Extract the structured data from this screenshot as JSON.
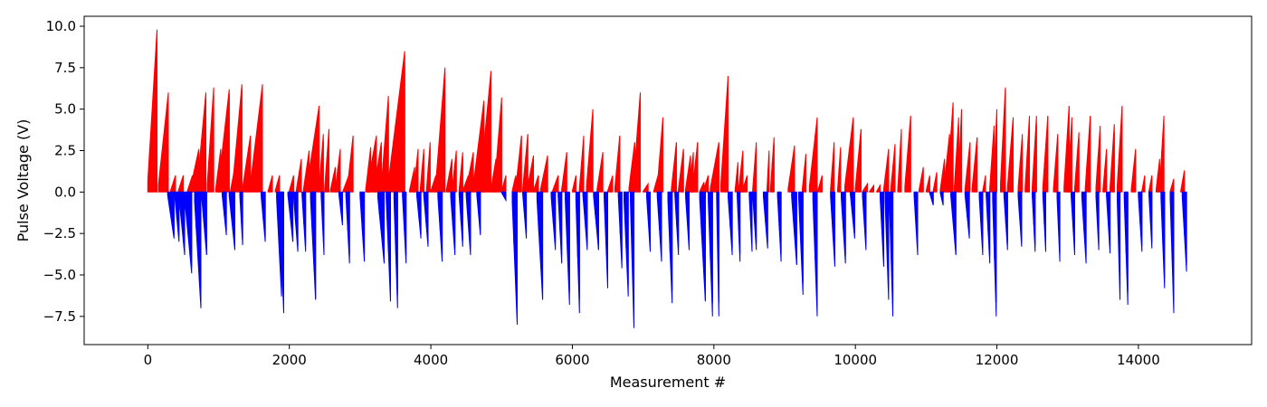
{
  "chart_data": {
    "type": "bar",
    "title": "",
    "xlabel": "Measurement #",
    "ylabel": "Pulse Voltage (V)",
    "xlim": [
      -900,
      15600
    ],
    "ylim": [
      -9.2,
      10.6
    ],
    "x_ticks": [
      0,
      2000,
      4000,
      6000,
      8000,
      10000,
      12000,
      14000
    ],
    "x_tick_labels": [
      "0",
      "2000",
      "4000",
      "6000",
      "8000",
      "10000",
      "12000",
      "14000"
    ],
    "y_ticks": [
      -7.5,
      -5.0,
      -2.5,
      0.0,
      2.5,
      5.0,
      7.5,
      10.0
    ],
    "y_tick_labels": [
      "−7.5",
      "−5.0",
      "−2.5",
      "0.0",
      "2.5",
      "5.0",
      "7.5",
      "10.0"
    ],
    "grid": false,
    "legend": "none",
    "series": [
      {
        "color": "#ff0000",
        "description": "positive pulses, ramps up to peak then resets",
        "ramps": [
          [
            0,
            130,
            9.8
          ],
          [
            150,
            290,
            6.0
          ],
          [
            320,
            390,
            1.0
          ],
          [
            430,
            500,
            1.0
          ],
          [
            560,
            630,
            1.0
          ],
          [
            600,
            720,
            2.6
          ],
          [
            700,
            820,
            6.0
          ],
          [
            840,
            930,
            6.3
          ],
          [
            960,
            1030,
            2.6
          ],
          [
            1000,
            1150,
            6.2
          ],
          [
            1170,
            1230,
            1.5
          ],
          [
            1200,
            1330,
            6.5
          ],
          [
            1340,
            1450,
            3.4
          ],
          [
            1450,
            1620,
            6.5
          ],
          [
            1700,
            1760,
            1.0
          ],
          [
            1800,
            1860,
            1.0
          ],
          [
            2000,
            2060,
            1.0
          ],
          [
            2100,
            2170,
            2.0
          ],
          [
            2200,
            2280,
            2.5
          ],
          [
            2250,
            2420,
            5.2
          ],
          [
            2420,
            2480,
            3.5
          ],
          [
            2500,
            2560,
            3.8
          ],
          [
            2580,
            2650,
            1.5
          ],
          [
            2650,
            2720,
            2.6
          ],
          [
            2760,
            2840,
            1.0
          ],
          [
            2820,
            2900,
            3.4
          ],
          [
            3080,
            3150,
            2.7
          ],
          [
            3100,
            3230,
            3.4
          ],
          [
            3200,
            3300,
            3.0
          ],
          [
            3300,
            3400,
            5.8
          ],
          [
            3400,
            3630,
            8.5
          ],
          [
            3700,
            3770,
            1.5
          ],
          [
            3760,
            3820,
            2.6
          ],
          [
            3850,
            3900,
            2.6
          ],
          [
            3940,
            3990,
            3.0
          ],
          [
            4000,
            4070,
            1.0
          ],
          [
            4070,
            4200,
            7.5
          ],
          [
            4220,
            4300,
            2.0
          ],
          [
            4300,
            4360,
            2.5
          ],
          [
            4400,
            4450,
            2.4
          ],
          [
            4450,
            4530,
            1.0
          ],
          [
            4500,
            4600,
            2.4
          ],
          [
            4600,
            4750,
            5.5
          ],
          [
            4700,
            4850,
            7.3
          ],
          [
            4850,
            4920,
            2.0
          ],
          [
            4900,
            5000,
            5.7
          ],
          [
            5000,
            5060,
            1.0
          ],
          [
            5150,
            5200,
            1.0
          ],
          [
            5200,
            5280,
            3.4
          ],
          [
            5300,
            5370,
            3.5
          ],
          [
            5360,
            5450,
            2.2
          ],
          [
            5450,
            5520,
            1.0
          ],
          [
            5550,
            5650,
            2.2
          ],
          [
            5720,
            5800,
            1.0
          ],
          [
            5850,
            5920,
            2.4
          ],
          [
            6000,
            6050,
            1.0
          ],
          [
            6100,
            6160,
            3.4
          ],
          [
            6200,
            6290,
            5.0
          ],
          [
            6350,
            6430,
            2.4
          ],
          [
            6500,
            6570,
            1.0
          ],
          [
            6600,
            6670,
            3.4
          ],
          [
            6800,
            6880,
            3.0
          ],
          [
            6860,
            6960,
            6.0
          ],
          [
            7000,
            7070,
            0.5
          ],
          [
            7150,
            7210,
            1.0
          ],
          [
            7200,
            7280,
            4.5
          ],
          [
            7400,
            7470,
            3.0
          ],
          [
            7500,
            7570,
            2.6
          ],
          [
            7600,
            7670,
            2.2
          ],
          [
            7650,
            7710,
            2.4
          ],
          [
            7700,
            7770,
            3.0
          ],
          [
            7800,
            7860,
            0.6
          ],
          [
            7850,
            7920,
            1.0
          ],
          [
            7950,
            8070,
            3.0
          ],
          [
            8100,
            8200,
            7.0
          ],
          [
            8300,
            8340,
            1.8
          ],
          [
            8350,
            8410,
            2.5
          ],
          [
            8400,
            8470,
            1.0
          ],
          [
            8550,
            8600,
            3.0
          ],
          [
            8750,
            8780,
            2.5
          ],
          [
            8800,
            8850,
            3.3
          ],
          [
            9050,
            9140,
            2.8
          ],
          [
            9250,
            9300,
            2.3
          ],
          [
            9350,
            9460,
            4.5
          ],
          [
            9470,
            9530,
            1.0
          ],
          [
            9650,
            9700,
            3.0
          ],
          [
            9750,
            9790,
            2.7
          ],
          [
            9850,
            9970,
            4.5
          ],
          [
            10000,
            10080,
            3.8
          ],
          [
            10100,
            10170,
            0.5
          ],
          [
            10200,
            10260,
            0.4
          ],
          [
            10300,
            10350,
            0.4
          ],
          [
            10400,
            10470,
            2.6
          ],
          [
            10500,
            10560,
            2.9
          ],
          [
            10600,
            10650,
            3.8
          ],
          [
            10700,
            10780,
            4.6
          ],
          [
            10900,
            10960,
            1.5
          ],
          [
            11000,
            11050,
            1.0
          ],
          [
            11100,
            11150,
            1.2
          ],
          [
            11200,
            11260,
            2.0
          ],
          [
            11250,
            11330,
            3.5
          ],
          [
            11300,
            11380,
            5.4
          ],
          [
            11400,
            11460,
            4.5
          ],
          [
            11450,
            11500,
            5.0
          ],
          [
            11550,
            11620,
            3.0
          ],
          [
            11650,
            11720,
            3.3
          ],
          [
            11800,
            11840,
            1.0
          ],
          [
            11900,
            11960,
            4.0
          ],
          [
            11950,
            12000,
            5.0
          ],
          [
            12050,
            12120,
            6.3
          ],
          [
            12150,
            12230,
            4.5
          ],
          [
            12300,
            12360,
            3.5
          ],
          [
            12400,
            12460,
            4.6
          ],
          [
            12500,
            12560,
            4.6
          ],
          [
            12650,
            12720,
            4.6
          ],
          [
            12800,
            12860,
            3.5
          ],
          [
            12950,
            13020,
            5.2
          ],
          [
            13000,
            13060,
            4.5
          ],
          [
            13100,
            13160,
            3.6
          ],
          [
            13250,
            13320,
            4.6
          ],
          [
            13400,
            13460,
            4.0
          ],
          [
            13500,
            13550,
            2.6
          ],
          [
            13600,
            13660,
            4.1
          ],
          [
            13700,
            13770,
            5.2
          ],
          [
            13900,
            13960,
            2.6
          ],
          [
            14050,
            14090,
            1.0
          ],
          [
            14150,
            14190,
            1.0
          ],
          [
            14250,
            14300,
            2.0
          ],
          [
            14300,
            14360,
            4.6
          ],
          [
            14450,
            14500,
            0.8
          ],
          [
            14600,
            14650,
            1.3
          ]
        ]
      },
      {
        "color": "#0000ff",
        "description": "negative pulses, ramps down to trough then resets",
        "ramps": [
          [
            280,
            370,
            -2.8
          ],
          [
            380,
            440,
            -3.0
          ],
          [
            440,
            520,
            -3.8
          ],
          [
            520,
            620,
            -4.9
          ],
          [
            660,
            750,
            -7.0
          ],
          [
            760,
            830,
            -3.8
          ],
          [
            1050,
            1110,
            -2.6
          ],
          [
            1150,
            1230,
            -3.5
          ],
          [
            1300,
            1340,
            -3.2
          ],
          [
            1600,
            1660,
            -3.0
          ],
          [
            1820,
            1890,
            -6.3
          ],
          [
            1860,
            1920,
            -7.3
          ],
          [
            1980,
            2050,
            -3.0
          ],
          [
            2060,
            2120,
            -3.6
          ],
          [
            2180,
            2230,
            -3.6
          ],
          [
            2300,
            2370,
            -6.5
          ],
          [
            2450,
            2490,
            -3.8
          ],
          [
            2700,
            2750,
            -2.0
          ],
          [
            2800,
            2850,
            -4.3
          ],
          [
            3000,
            3060,
            -4.2
          ],
          [
            3250,
            3340,
            -4.3
          ],
          [
            3370,
            3430,
            -6.6
          ],
          [
            3480,
            3530,
            -7.0
          ],
          [
            3600,
            3650,
            -4.3
          ],
          [
            3800,
            3860,
            -2.8
          ],
          [
            3900,
            3960,
            -3.3
          ],
          [
            4100,
            4160,
            -4.2
          ],
          [
            4280,
            4340,
            -3.8
          ],
          [
            4400,
            4450,
            -3.3
          ],
          [
            4500,
            4560,
            -3.8
          ],
          [
            4650,
            4700,
            -2.6
          ],
          [
            5000,
            5060,
            -0.5
          ],
          [
            5150,
            5220,
            -8.0
          ],
          [
            5300,
            5350,
            -2.8
          ],
          [
            5500,
            5580,
            -6.5
          ],
          [
            5700,
            5760,
            -3.5
          ],
          [
            5800,
            5850,
            -4.3
          ],
          [
            5900,
            5960,
            -6.8
          ],
          [
            6050,
            6100,
            -7.3
          ],
          [
            6150,
            6210,
            -3.5
          ],
          [
            6300,
            6370,
            -3.5
          ],
          [
            6450,
            6500,
            -5.8
          ],
          [
            6650,
            6700,
            -4.6
          ],
          [
            6730,
            6790,
            -6.3
          ],
          [
            6820,
            6870,
            -8.2
          ],
          [
            7050,
            7100,
            -3.6
          ],
          [
            7200,
            7260,
            -4.2
          ],
          [
            7350,
            7410,
            -6.7
          ],
          [
            7450,
            7500,
            -3.8
          ],
          [
            7600,
            7650,
            -3.5
          ],
          [
            7800,
            7880,
            -6.6
          ],
          [
            7920,
            7980,
            -7.5
          ],
          [
            8040,
            8070,
            -7.5
          ],
          [
            8200,
            8260,
            -3.8
          ],
          [
            8330,
            8370,
            -4.2
          ],
          [
            8500,
            8540,
            -3.6
          ],
          [
            8550,
            8600,
            -3.5
          ],
          [
            8700,
            8760,
            -3.4
          ],
          [
            8900,
            8950,
            -4.2
          ],
          [
            9100,
            9170,
            -4.4
          ],
          [
            9200,
            9260,
            -6.2
          ],
          [
            9400,
            9460,
            -7.5
          ],
          [
            9650,
            9710,
            -4.5
          ],
          [
            9800,
            9860,
            -4.3
          ],
          [
            9930,
            9990,
            -2.8
          ],
          [
            10100,
            10150,
            -3.5
          ],
          [
            10350,
            10400,
            -4.5
          ],
          [
            10420,
            10470,
            -6.5
          ],
          [
            10480,
            10530,
            -7.5
          ],
          [
            10830,
            10880,
            -3.8
          ],
          [
            11050,
            11100,
            -0.8
          ],
          [
            11200,
            11240,
            -0.8
          ],
          [
            11350,
            11420,
            -3.8
          ],
          [
            11550,
            11610,
            -2.8
          ],
          [
            11750,
            11800,
            -3.8
          ],
          [
            11850,
            11900,
            -4.3
          ],
          [
            11940,
            11990,
            -7.5
          ],
          [
            12100,
            12150,
            -3.5
          ],
          [
            12300,
            12350,
            -3.3
          ],
          [
            12500,
            12540,
            -3.6
          ],
          [
            12650,
            12690,
            -3.6
          ],
          [
            12850,
            12890,
            -4.2
          ],
          [
            13050,
            13100,
            -3.8
          ],
          [
            13200,
            13260,
            -4.3
          ],
          [
            13400,
            13440,
            -3.5
          ],
          [
            13550,
            13600,
            -3.7
          ],
          [
            13700,
            13740,
            -6.5
          ],
          [
            13800,
            13850,
            -6.8
          ],
          [
            14000,
            14050,
            -3.6
          ],
          [
            14150,
            14190,
            -3.4
          ],
          [
            14320,
            14370,
            -5.8
          ],
          [
            14450,
            14500,
            -7.3
          ],
          [
            14620,
            14680,
            -4.8
          ]
        ]
      }
    ]
  }
}
